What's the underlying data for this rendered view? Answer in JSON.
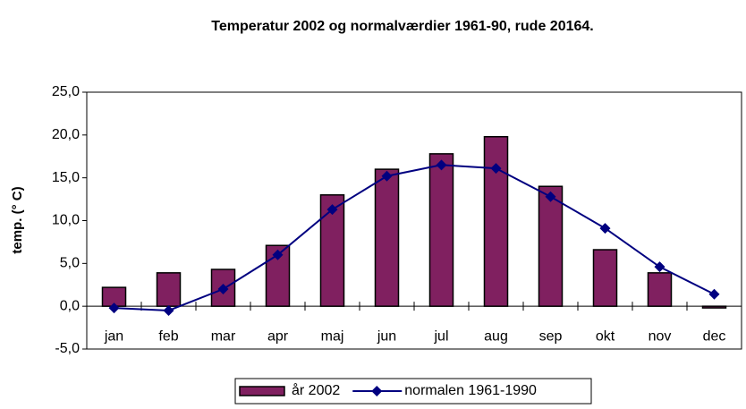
{
  "chart_data": {
    "type": "bar",
    "title": "Temperatur 2002 og normalværdier 1961-90, rude 20164.",
    "y_label": "temp. (° C)",
    "categories": [
      "jan",
      "feb",
      "mar",
      "apr",
      "maj",
      "jun",
      "jul",
      "aug",
      "sep",
      "okt",
      "nov",
      "dec"
    ],
    "series": [
      {
        "name": "år 2002",
        "type": "bar",
        "color": "#802060",
        "values": [
          2.2,
          3.9,
          4.3,
          7.1,
          13.0,
          16.0,
          17.8,
          19.8,
          14.0,
          6.6,
          3.9,
          -0.2
        ]
      },
      {
        "name": "normalen 1961-1990",
        "type": "line",
        "color": "#000080",
        "values": [
          -0.2,
          -0.5,
          2.0,
          6.0,
          11.3,
          15.2,
          16.5,
          16.1,
          12.8,
          9.1,
          4.6,
          1.4
        ]
      }
    ],
    "ylim": [
      -5,
      25
    ],
    "yticks": [
      {
        "value": -5,
        "label": "-5,0"
      },
      {
        "value": 0,
        "label": "0,0"
      },
      {
        "value": 5,
        "label": "5,0"
      },
      {
        "value": 10,
        "label": "10,0"
      },
      {
        "value": 15,
        "label": "15,0"
      },
      {
        "value": 20,
        "label": "20,0"
      },
      {
        "value": 25,
        "label": "25,0"
      }
    ],
    "grid": false,
    "legend": "bottom"
  }
}
